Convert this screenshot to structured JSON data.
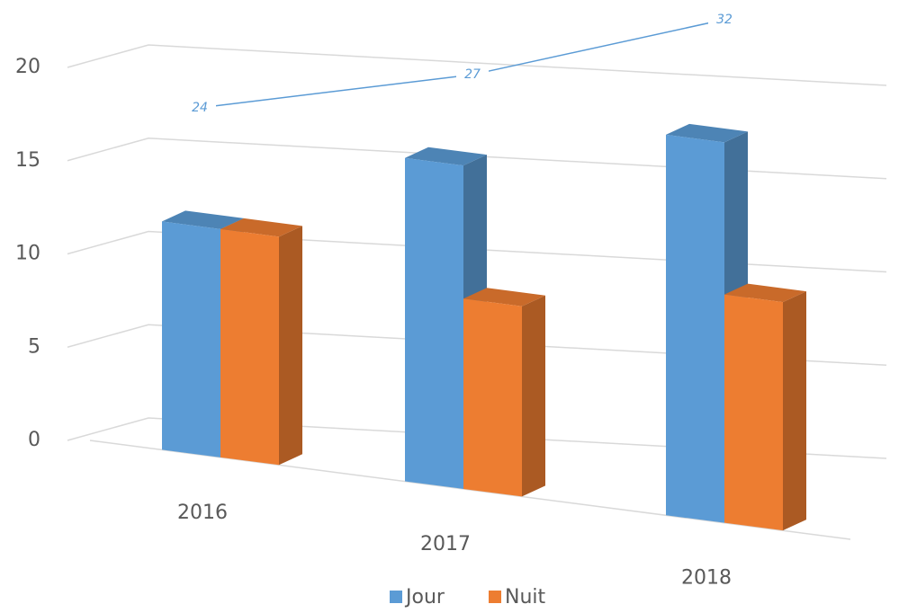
{
  "chart_data": {
    "type": "bar3d",
    "categories": [
      "2016",
      "2017",
      "2018"
    ],
    "series": [
      {
        "name": "Jour",
        "color": "#5b9bd5",
        "values": [
          12,
          17,
          20
        ]
      },
      {
        "name": "Nuit",
        "color": "#ed7d31",
        "values": [
          12,
          10,
          12
        ]
      }
    ],
    "line": {
      "color": "#5b9bd5",
      "values": [
        24,
        27,
        32
      ],
      "axis": "y2"
    },
    "ylim": [
      0,
      20
    ],
    "yticks": [
      0,
      5,
      10,
      15,
      20
    ],
    "y2lim": [
      0,
      35
    ],
    "grid": true,
    "legend": "bottom"
  }
}
